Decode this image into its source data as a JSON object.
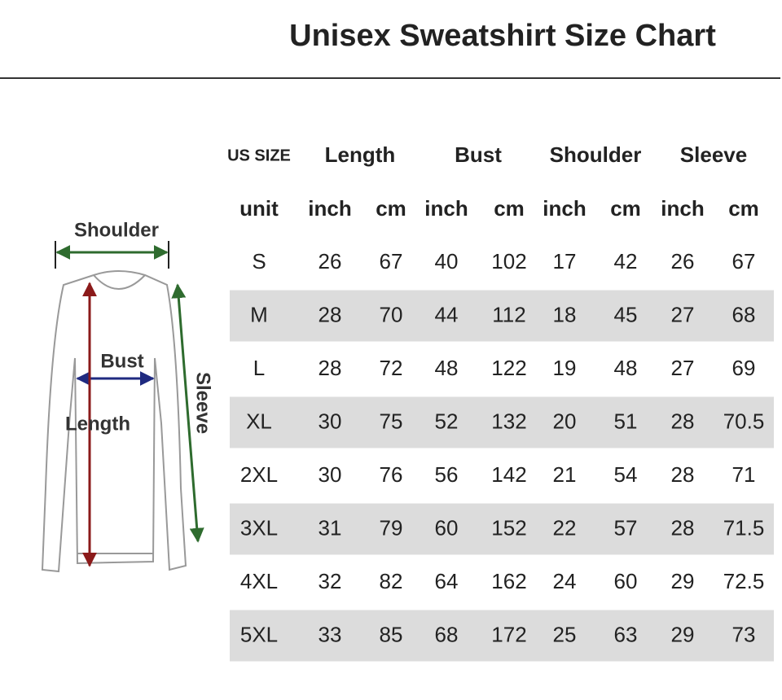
{
  "title": "Unisex Sweatshirt Size Chart",
  "diagram": {
    "labels": [
      "Shoulder",
      "Bust",
      "Length",
      "Sleeve"
    ]
  },
  "table": {
    "header": [
      "US SIZE",
      "Length",
      "Bust",
      "Shoulder",
      "Sleeve"
    ],
    "units": [
      "unit",
      "inch",
      "cm",
      "inch",
      "cm",
      "inch",
      "cm",
      "inch",
      "cm"
    ],
    "rows": [
      [
        "S",
        "26",
        "67",
        "40",
        "102",
        "17",
        "42",
        "26",
        "67"
      ],
      [
        "M",
        "28",
        "70",
        "44",
        "112",
        "18",
        "45",
        "27",
        "68"
      ],
      [
        "L",
        "28",
        "72",
        "48",
        "122",
        "19",
        "48",
        "27",
        "69"
      ],
      [
        "XL",
        "30",
        "75",
        "52",
        "132",
        "20",
        "51",
        "28",
        "70.5"
      ],
      [
        "2XL",
        "30",
        "76",
        "56",
        "142",
        "21",
        "54",
        "28",
        "71"
      ],
      [
        "3XL",
        "31",
        "79",
        "60",
        "152",
        "22",
        "57",
        "28",
        "71.5"
      ],
      [
        "4XL",
        "32",
        "82",
        "64",
        "162",
        "24",
        "60",
        "29",
        "72.5"
      ],
      [
        "5XL",
        "33",
        "85",
        "68",
        "172",
        "25",
        "63",
        "29",
        "73"
      ]
    ]
  }
}
